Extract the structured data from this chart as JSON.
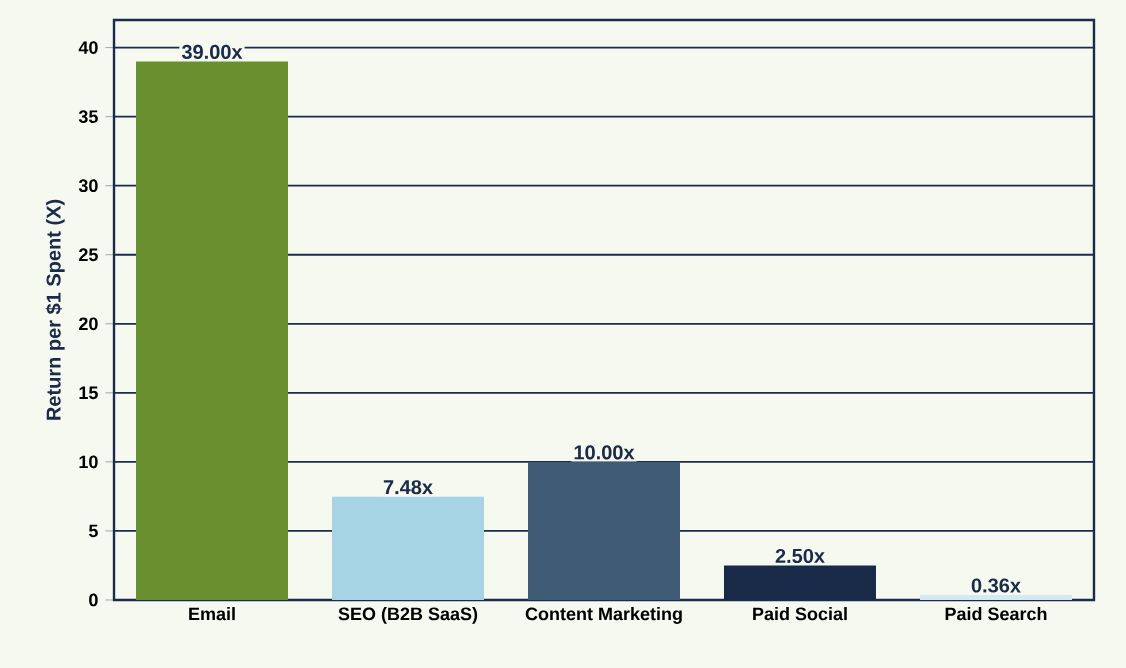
{
  "chart_data": {
    "type": "bar",
    "ylabel": "Return per $1 Spent (X)",
    "categories": [
      "Email",
      "SEO (B2B SaaS)",
      "Content Marketing",
      "Paid Social",
      "Paid Search"
    ],
    "values": [
      39.0,
      7.48,
      10.0,
      2.5,
      0.36
    ],
    "colors": [
      "#6a8f2f",
      "#a6d4e4",
      "#3f5a74",
      "#182a48",
      "#d8e8f2"
    ],
    "value_labels": [
      "39.00x",
      "7.48x",
      "10.00x",
      "2.50x",
      "0.36x"
    ],
    "ylim": [
      0,
      42
    ],
    "yticks": [
      0,
      5,
      10,
      15,
      20,
      25,
      30,
      35,
      40
    ],
    "grid": "y"
  }
}
